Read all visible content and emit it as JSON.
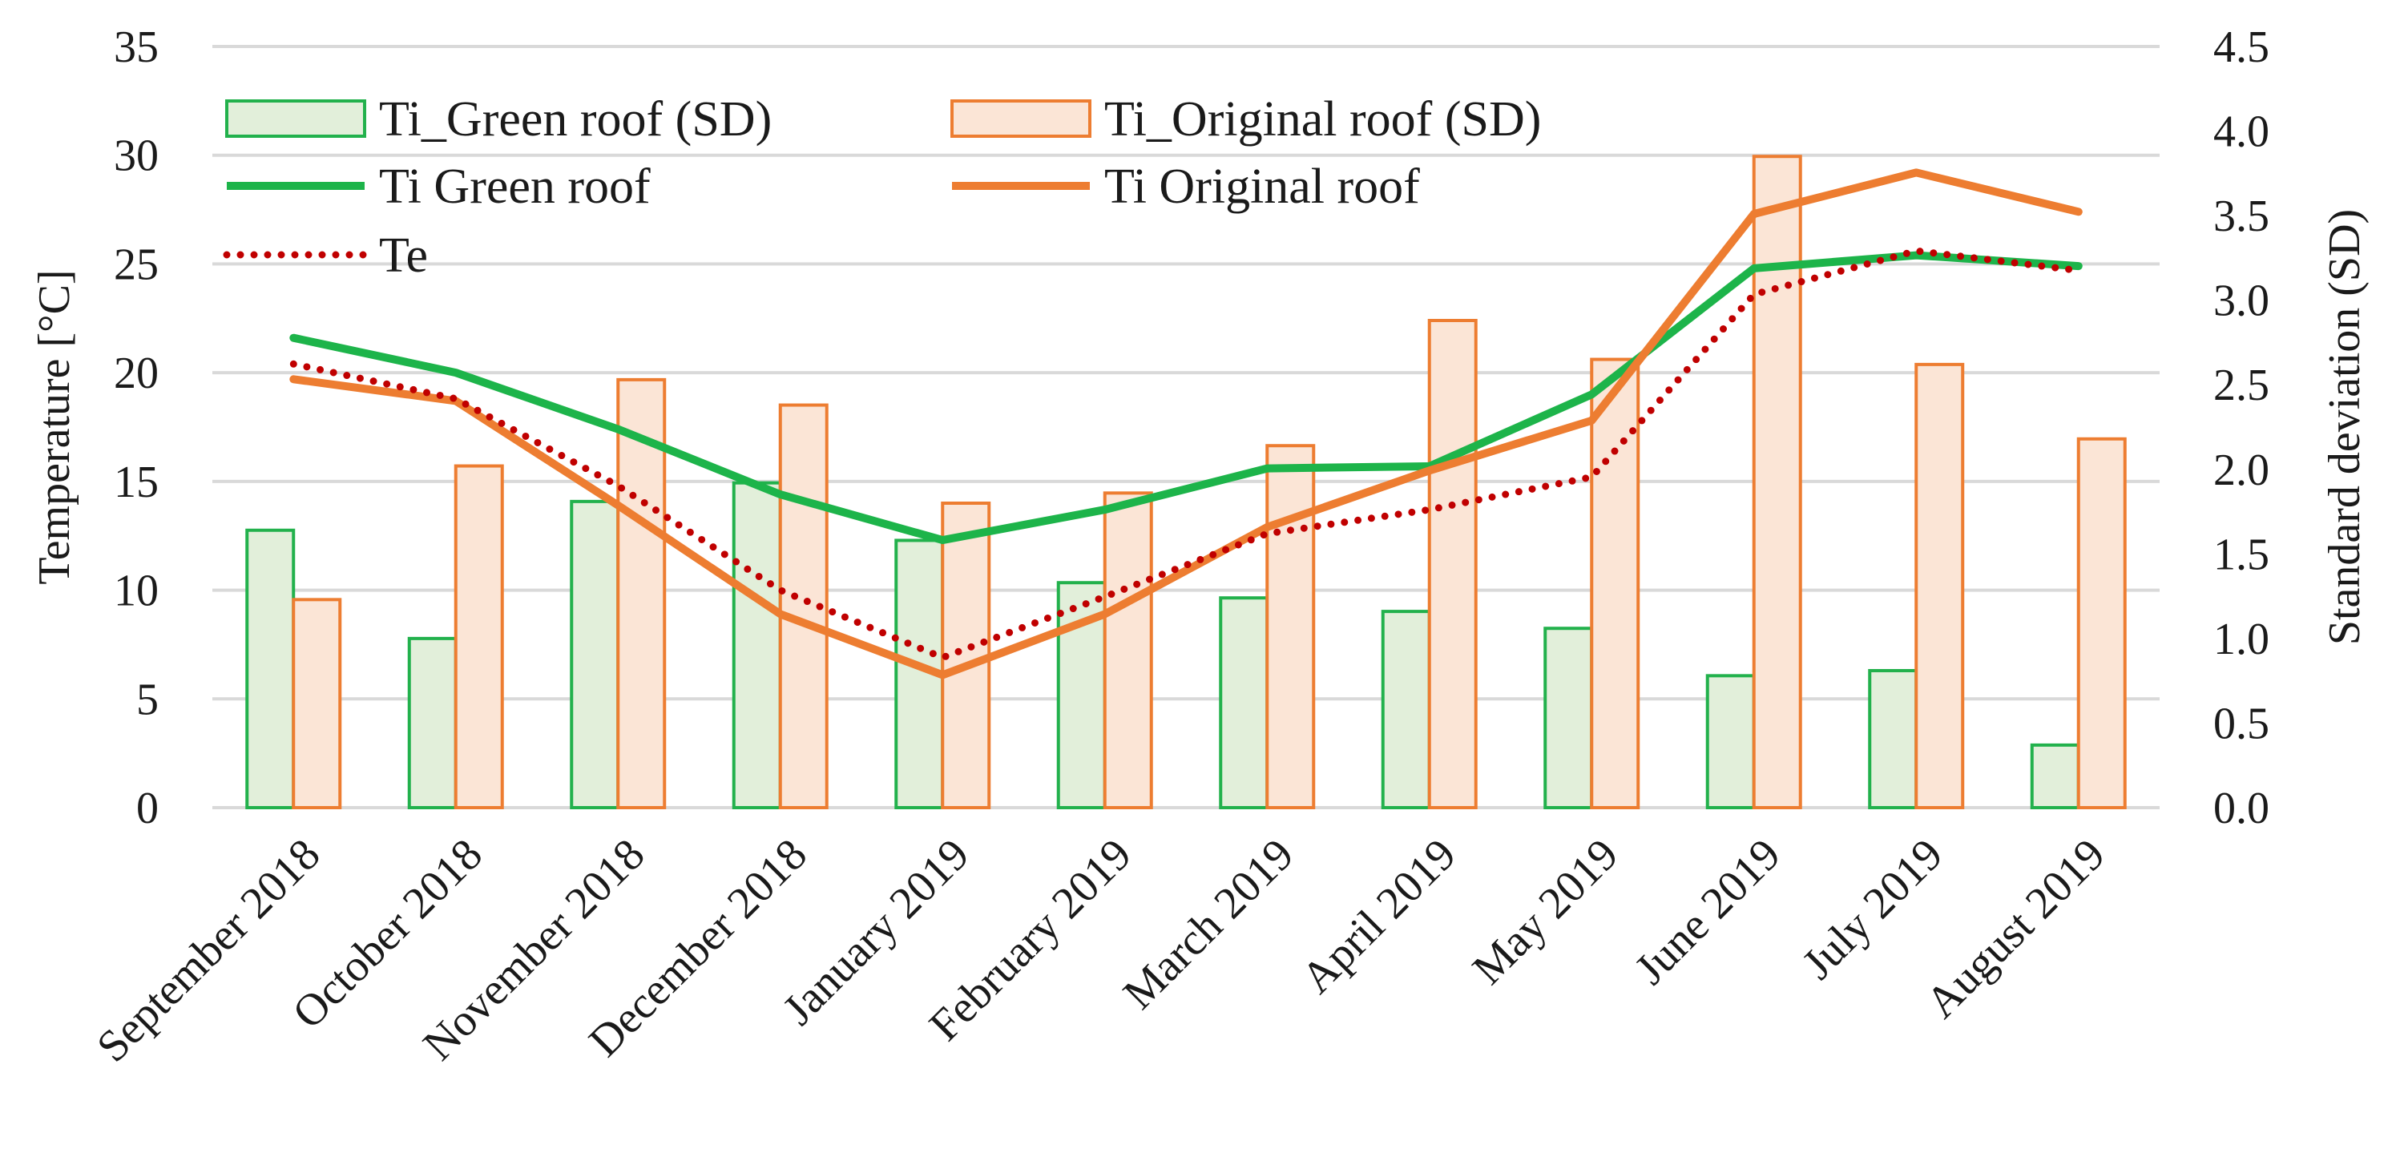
{
  "chart_data": {
    "type": "bar+line",
    "categories": [
      "September 2018",
      "October 2018",
      "November 2018",
      "December 2018",
      "January 2019",
      "February 2019",
      "March 2019",
      "April 2019",
      "May 2019",
      "June 2019",
      "July 2019",
      "August 2019"
    ],
    "y_left": {
      "label": "Temperature [°C]",
      "min": 0,
      "max": 35,
      "ticks": [
        "0",
        "5",
        "10",
        "15",
        "20",
        "25",
        "30",
        "35"
      ]
    },
    "y_right": {
      "label": "Standard deviation (SD)",
      "min": 0,
      "max": 4.5,
      "ticks": [
        "0.0",
        "0.5",
        "1.0",
        "1.5",
        "2.0",
        "2.5",
        "3.0",
        "3.5",
        "4.0",
        "4.5"
      ]
    },
    "bar_series": [
      {
        "name": "Ti_Green roof (SD)",
        "axis": "right",
        "fill": "#e2efda",
        "stroke": "#22b14c",
        "values": [
          1.64,
          1.0,
          1.81,
          1.92,
          1.58,
          1.33,
          1.24,
          1.16,
          1.06,
          0.78,
          0.81,
          0.37
        ]
      },
      {
        "name": "Ti_Original roof (SD)",
        "axis": "right",
        "fill": "#fbe5d6",
        "stroke": "#ed7d31",
        "values": [
          1.23,
          2.02,
          2.53,
          2.38,
          1.8,
          1.86,
          2.14,
          2.88,
          2.65,
          3.85,
          2.62,
          2.18
        ]
      }
    ],
    "line_series": [
      {
        "name": "Ti Green roof",
        "axis": "left",
        "color": "#1db44a",
        "style": "solid",
        "values": [
          21.6,
          20.0,
          17.4,
          14.4,
          12.3,
          13.7,
          15.6,
          15.7,
          19.0,
          24.8,
          25.4,
          24.9
        ]
      },
      {
        "name": "Ti Original roof",
        "axis": "left",
        "color": "#ed7d31",
        "style": "solid",
        "values": [
          19.7,
          18.7,
          13.9,
          8.9,
          6.1,
          8.9,
          12.9,
          15.5,
          17.8,
          27.3,
          29.2,
          27.4
        ]
      },
      {
        "name": "Te",
        "axis": "left",
        "color": "#c00000",
        "style": "dotted",
        "values": [
          20.4,
          18.8,
          14.8,
          10.0,
          6.9,
          9.7,
          12.6,
          13.7,
          15.2,
          23.6,
          25.6,
          24.7
        ]
      }
    ],
    "legend": [
      {
        "label": "Ti_Green roof (SD)",
        "kind": "bar",
        "series": 0
      },
      {
        "label": "Ti_Original roof (SD)",
        "kind": "bar",
        "series": 1
      },
      {
        "label": "Ti Green roof",
        "kind": "line",
        "series": 0
      },
      {
        "label": "Ti Original roof",
        "kind": "line",
        "series": 1
      },
      {
        "label": "Te",
        "kind": "line",
        "series": 2
      }
    ],
    "legend_position": "top-left",
    "grid": true,
    "gridline_color": "#d9d9d9"
  }
}
